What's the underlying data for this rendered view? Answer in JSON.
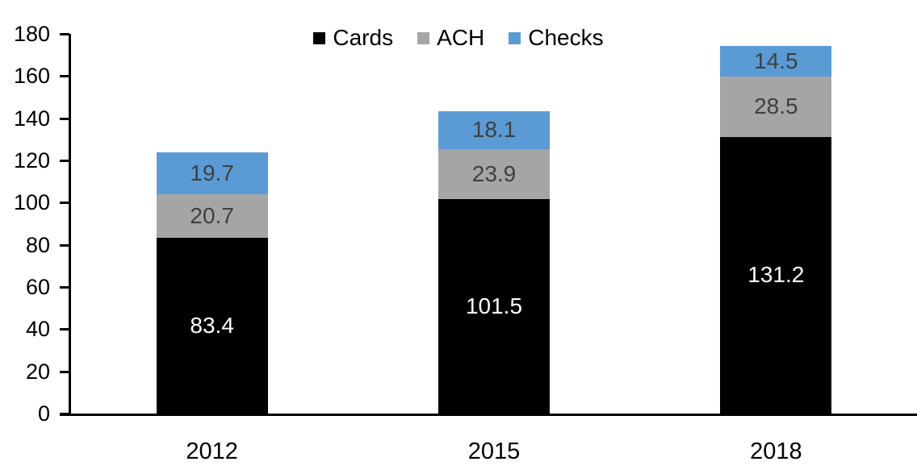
{
  "chart_data": {
    "type": "bar",
    "stacked": true,
    "title": "",
    "xlabel": "",
    "ylabel": "",
    "categories": [
      "2012",
      "2015",
      "2018"
    ],
    "series": [
      {
        "name": "Cards",
        "color": "#000000",
        "label_color": "#ffffff",
        "values": [
          83.4,
          101.5,
          131.2
        ]
      },
      {
        "name": "ACH",
        "color": "#a5a5a5",
        "label_color": "#3f3f3f",
        "values": [
          20.7,
          23.9,
          28.5
        ]
      },
      {
        "name": "Checks",
        "color": "#5b9bd5",
        "label_color": "#3f3f3f",
        "values": [
          19.7,
          18.1,
          14.5
        ]
      }
    ],
    "ylim": [
      0,
      180
    ],
    "ytick_step": 20,
    "yticks": [
      "0",
      "20",
      "40",
      "60",
      "80",
      "100",
      "120",
      "140",
      "160",
      "180"
    ],
    "legend_position": "top",
    "grid": false,
    "axis_color": "#000000",
    "background": "#ffffff"
  }
}
